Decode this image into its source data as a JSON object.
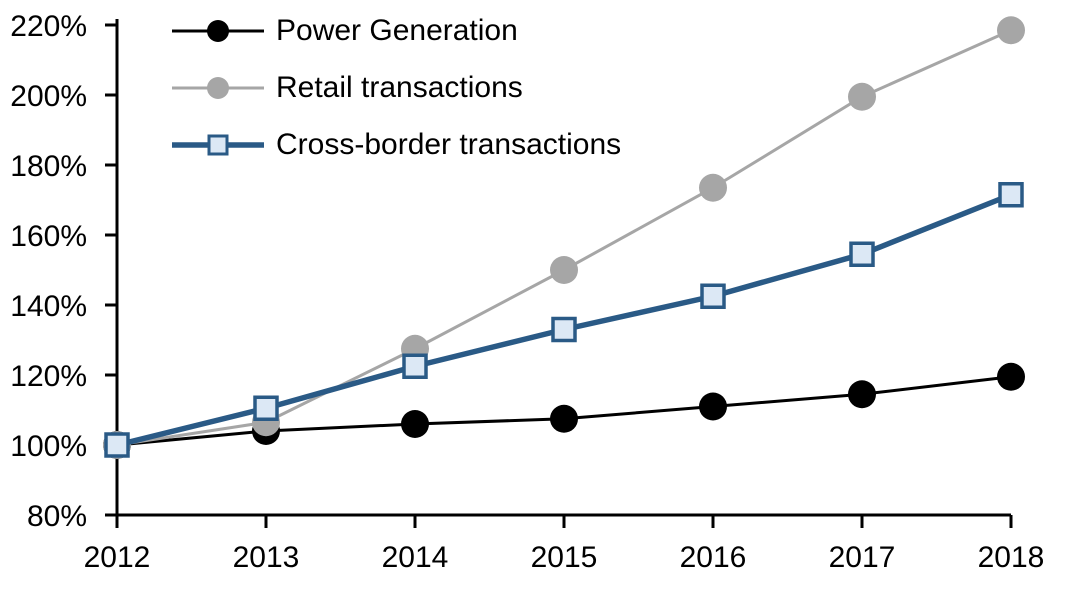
{
  "chart_data": {
    "type": "line",
    "title": "",
    "xlabel": "",
    "ylabel": "",
    "grid": false,
    "legend_position": "top-left-inside",
    "axis_color": "#000000",
    "background_color": "#ffffff",
    "x_tick_labels": [
      "2012",
      "2013",
      "2014",
      "2015",
      "2016",
      "2017",
      "2018"
    ],
    "y_tick_values": [
      80,
      100,
      120,
      140,
      160,
      180,
      200,
      220
    ],
    "y_tick_labels": [
      "80%",
      "100%",
      "120%",
      "140%",
      "160%",
      "180%",
      "200%",
      "220%"
    ],
    "ylim": [
      80,
      220
    ],
    "series": [
      {
        "name": "Power Generation",
        "color": "#000000",
        "marker": "circle",
        "marker_fill": "#000000",
        "line_width": 3,
        "marker_size": 28,
        "values": [
          100,
          104,
          106,
          107.5,
          111,
          114.5,
          119.5
        ]
      },
      {
        "name": "Retail transactions",
        "color": "#a6a6a6",
        "marker": "circle",
        "marker_fill": "#a6a6a6",
        "line_width": 3,
        "marker_size": 28,
        "values": [
          100,
          106.5,
          127.5,
          150,
          173.5,
          199.5,
          218.5
        ]
      },
      {
        "name": "Cross-border transactions",
        "color": "#2a5a86",
        "marker": "square",
        "marker_fill": "#dce8f5",
        "line_width": 5.5,
        "marker_size": 22,
        "values": [
          100,
          110.5,
          122.5,
          133,
          142.5,
          154.5,
          171.5
        ]
      }
    ]
  }
}
